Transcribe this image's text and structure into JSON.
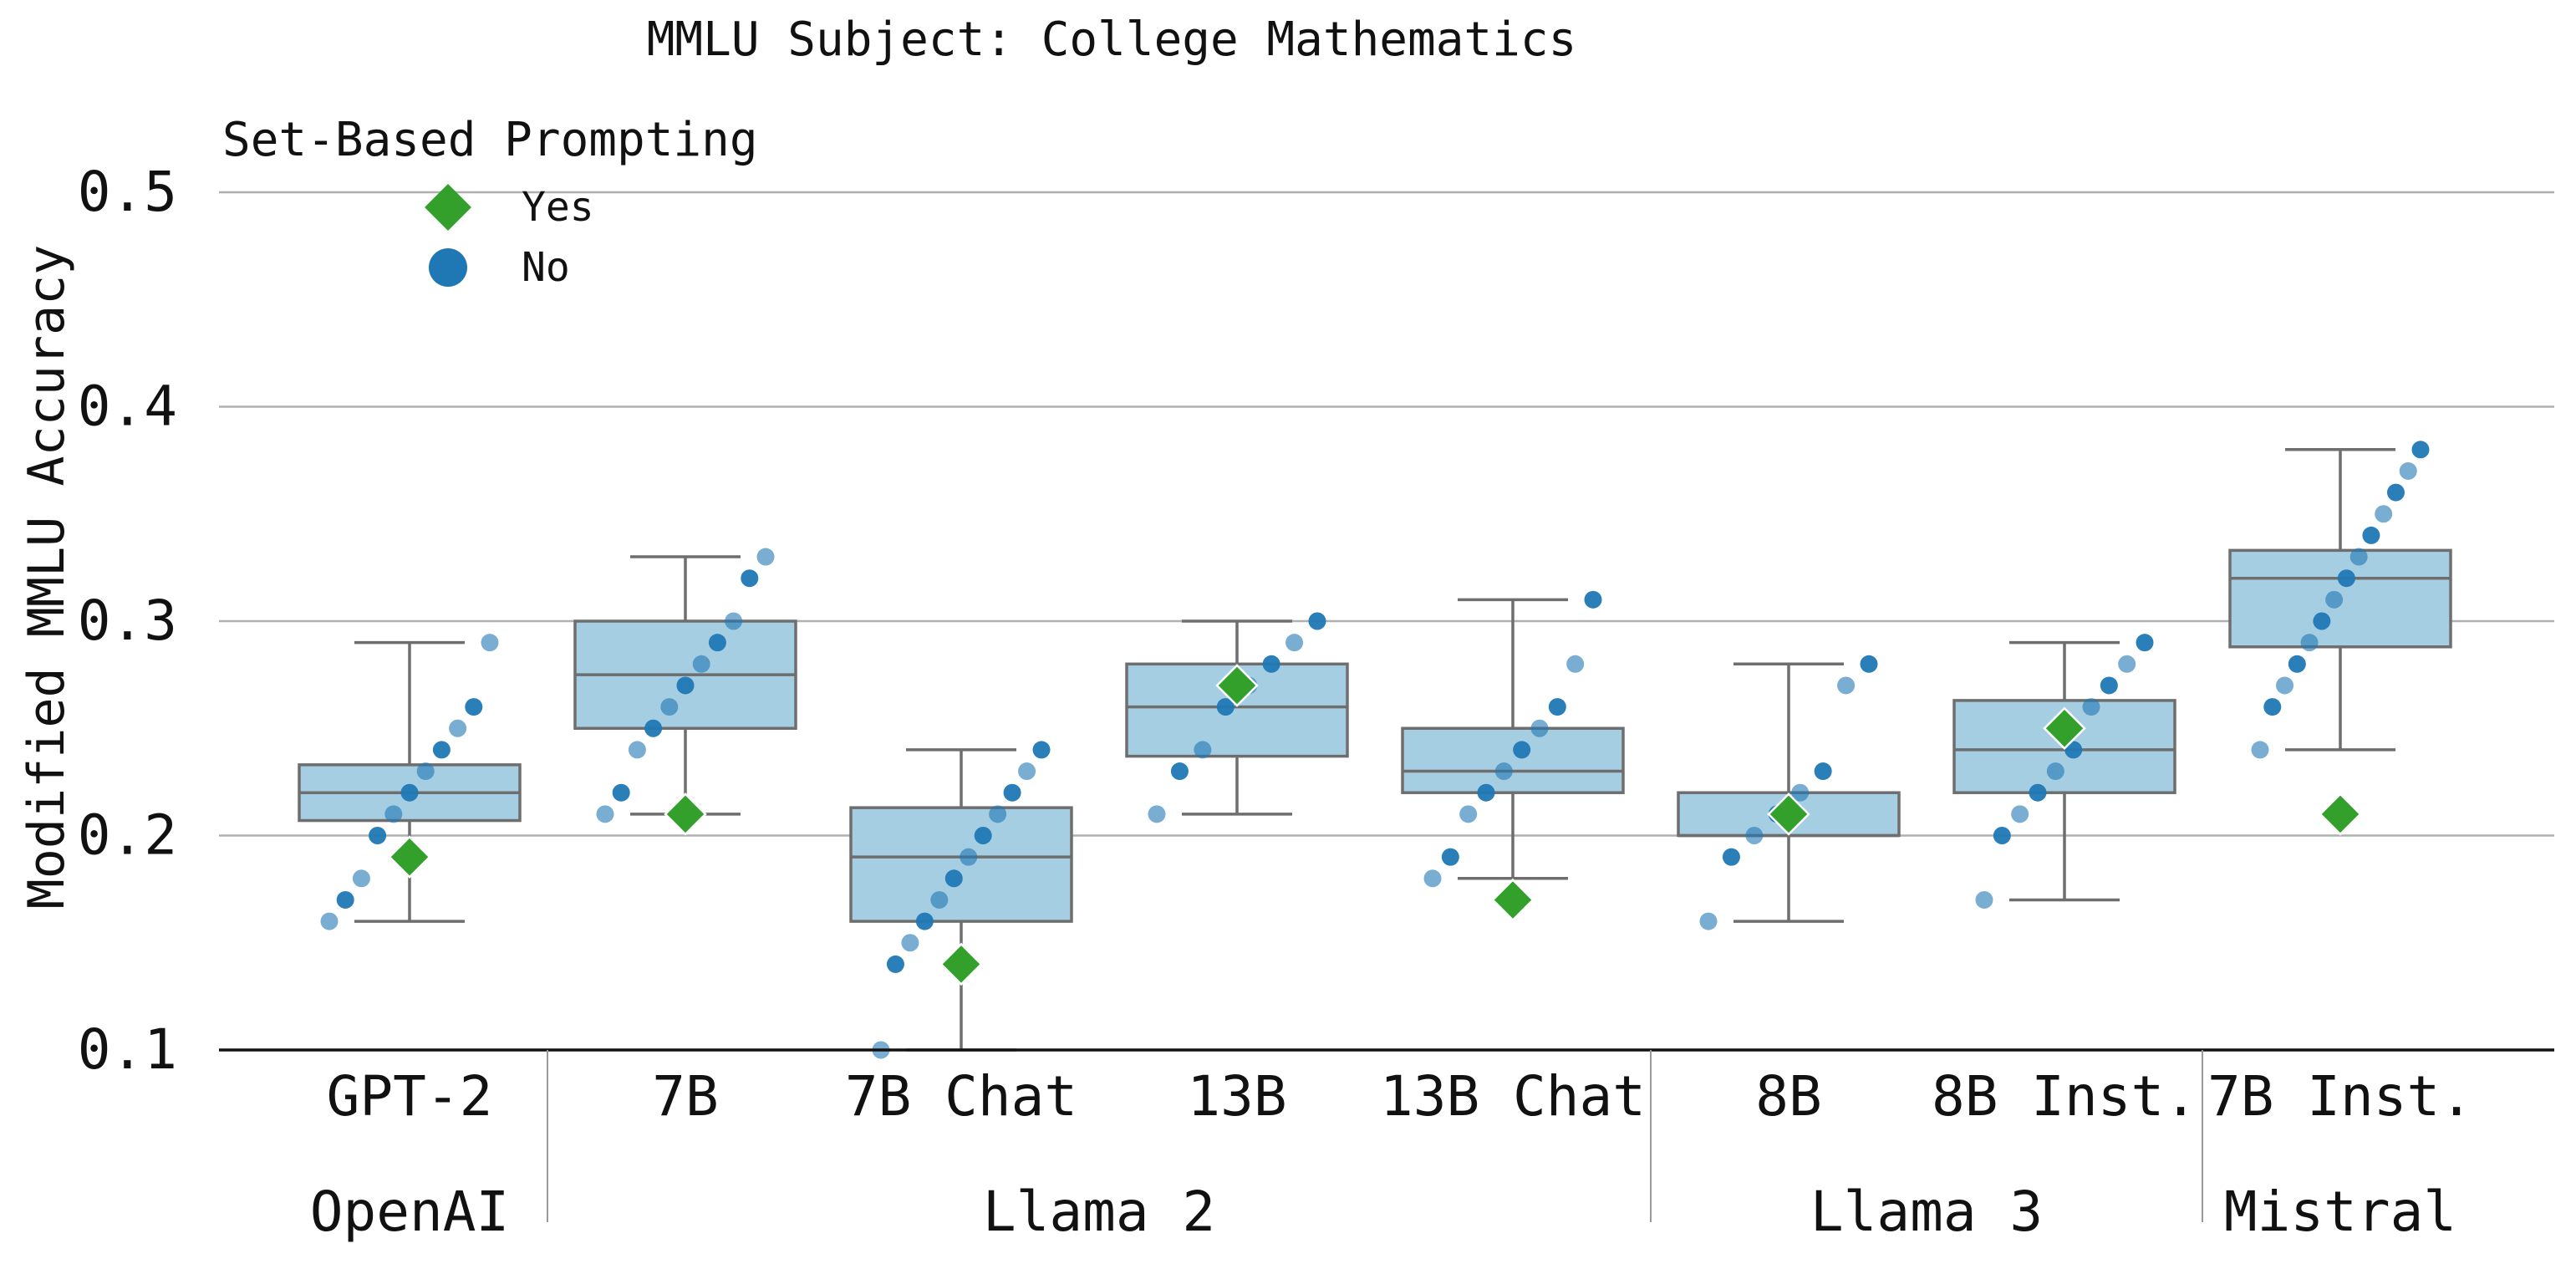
{
  "chart_data": {
    "type": "box",
    "title": "MMLU Subject: College Mathematics",
    "ylabel": "Modified MMLU Accuracy",
    "xlabel": "",
    "ylim": [
      0.1,
      0.5
    ],
    "yticks": [
      "0.1",
      "0.2",
      "0.3",
      "0.4",
      "0.5"
    ],
    "grid": "horizontal",
    "legend": {
      "title": "Set-Based Prompting",
      "placement": "top-left",
      "items": [
        {
          "label": "Yes",
          "marker": "diamond",
          "color": "#33a02c"
        },
        {
          "label": "No",
          "marker": "circle",
          "color": "#1f78b4"
        }
      ]
    },
    "box_color": "#a6cee3",
    "box_edge_color": "#6e6e6e",
    "groups": [
      {
        "label": "OpenAI",
        "count": 1
      },
      {
        "label": "Llama 2",
        "count": 4
      },
      {
        "label": "Llama 3",
        "count": 2
      },
      {
        "label": "Mistral",
        "count": 1
      }
    ],
    "models": [
      {
        "label": "GPT-2",
        "group": "OpenAI",
        "whisker_low": 0.16,
        "q1": 0.207,
        "median": 0.22,
        "q3": 0.233,
        "whisker_high": 0.29,
        "set_based": 0.19,
        "no_points": [
          0.16,
          0.17,
          0.18,
          0.2,
          0.21,
          0.22,
          0.23,
          0.24,
          0.25,
          0.26,
          0.29
        ]
      },
      {
        "label": "7B",
        "group": "Llama 2",
        "whisker_low": 0.21,
        "q1": 0.25,
        "median": 0.275,
        "q3": 0.3,
        "whisker_high": 0.33,
        "set_based": 0.21,
        "no_points": [
          0.21,
          0.22,
          0.24,
          0.25,
          0.26,
          0.27,
          0.28,
          0.29,
          0.3,
          0.32,
          0.33
        ]
      },
      {
        "label": "7B Chat",
        "group": "Llama 2",
        "whisker_low": 0.1,
        "q1": 0.16,
        "median": 0.19,
        "q3": 0.213,
        "whisker_high": 0.24,
        "set_based": 0.14,
        "no_points": [
          0.1,
          0.14,
          0.15,
          0.16,
          0.17,
          0.18,
          0.19,
          0.2,
          0.21,
          0.22,
          0.23,
          0.24
        ]
      },
      {
        "label": "13B",
        "group": "Llama 2",
        "whisker_low": 0.21,
        "q1": 0.237,
        "median": 0.26,
        "q3": 0.28,
        "whisker_high": 0.3,
        "set_based": 0.27,
        "no_points": [
          0.21,
          0.23,
          0.24,
          0.26,
          0.27,
          0.28,
          0.29,
          0.3
        ]
      },
      {
        "label": "13B Chat",
        "group": "Llama 2",
        "whisker_low": 0.18,
        "q1": 0.22,
        "median": 0.23,
        "q3": 0.25,
        "whisker_high": 0.31,
        "set_based": 0.17,
        "no_points": [
          0.18,
          0.19,
          0.21,
          0.22,
          0.23,
          0.24,
          0.25,
          0.26,
          0.28,
          0.31
        ]
      },
      {
        "label": "8B",
        "group": "Llama 3",
        "whisker_low": 0.16,
        "q1": 0.2,
        "median": 0.2,
        "q3": 0.22,
        "whisker_high": 0.28,
        "set_based": 0.21,
        "no_points": [
          0.16,
          0.19,
          0.2,
          0.21,
          0.22,
          0.23,
          0.27,
          0.28
        ]
      },
      {
        "label": "8B Inst.",
        "group": "Llama 3",
        "whisker_low": 0.17,
        "q1": 0.22,
        "median": 0.24,
        "q3": 0.263,
        "whisker_high": 0.29,
        "set_based": 0.25,
        "no_points": [
          0.17,
          0.2,
          0.21,
          0.22,
          0.23,
          0.24,
          0.26,
          0.27,
          0.28,
          0.29
        ]
      },
      {
        "label": "7B Inst.",
        "group": "Mistral",
        "whisker_low": 0.24,
        "q1": 0.288,
        "median": 0.32,
        "q3": 0.333,
        "whisker_high": 0.38,
        "set_based": 0.21,
        "no_points": [
          0.24,
          0.26,
          0.27,
          0.28,
          0.29,
          0.3,
          0.31,
          0.32,
          0.33,
          0.34,
          0.35,
          0.36,
          0.37,
          0.38
        ]
      }
    ]
  }
}
